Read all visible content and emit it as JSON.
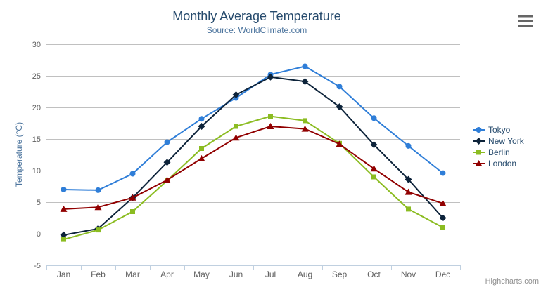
{
  "credit": "Highcharts.com",
  "chart_data": {
    "type": "line",
    "title": "Monthly Average Temperature",
    "subtitle": "Source: WorldClimate.com",
    "categories": [
      "Jan",
      "Feb",
      "Mar",
      "Apr",
      "May",
      "Jun",
      "Jul",
      "Aug",
      "Sep",
      "Oct",
      "Nov",
      "Dec"
    ],
    "series": [
      {
        "name": "Tokyo",
        "color": "#2f7ed8",
        "marker": "circle",
        "values": [
          7.0,
          6.9,
          9.5,
          14.5,
          18.2,
          21.5,
          25.2,
          26.5,
          23.3,
          18.3,
          13.9,
          9.6
        ]
      },
      {
        "name": "New York",
        "color": "#0d233a",
        "marker": "diamond",
        "values": [
          -0.2,
          0.8,
          5.7,
          11.3,
          17.0,
          22.0,
          24.8,
          24.1,
          20.1,
          14.1,
          8.6,
          2.5
        ]
      },
      {
        "name": "Berlin",
        "color": "#8bbc21",
        "marker": "square",
        "values": [
          -0.9,
          0.6,
          3.5,
          8.4,
          13.5,
          17.0,
          18.6,
          17.9,
          14.3,
          9.0,
          3.9,
          1.0
        ]
      },
      {
        "name": "London",
        "color": "#910000",
        "marker": "triangle",
        "values": [
          3.9,
          4.2,
          5.7,
          8.5,
          11.9,
          15.2,
          17.0,
          16.6,
          14.2,
          10.3,
          6.6,
          4.8
        ]
      }
    ],
    "xlabel": "",
    "ylabel": "Temperature (°C)",
    "ylim": [
      -5,
      30
    ],
    "yticks": [
      -5,
      0,
      5,
      10,
      15,
      20,
      25,
      30
    ],
    "grid": true,
    "legend_position": "right-middle"
  },
  "colors": {
    "title": "#274b6d",
    "subtitle": "#4d759e",
    "axis_title": "#4d759e",
    "tick_label": "#606060",
    "gridline": "#c0c0c0",
    "axis_line": "#c0d0e0",
    "legend_label": "#274b6d",
    "credit": "#909090",
    "menu_icon": "#666666",
    "background": "#ffffff"
  }
}
